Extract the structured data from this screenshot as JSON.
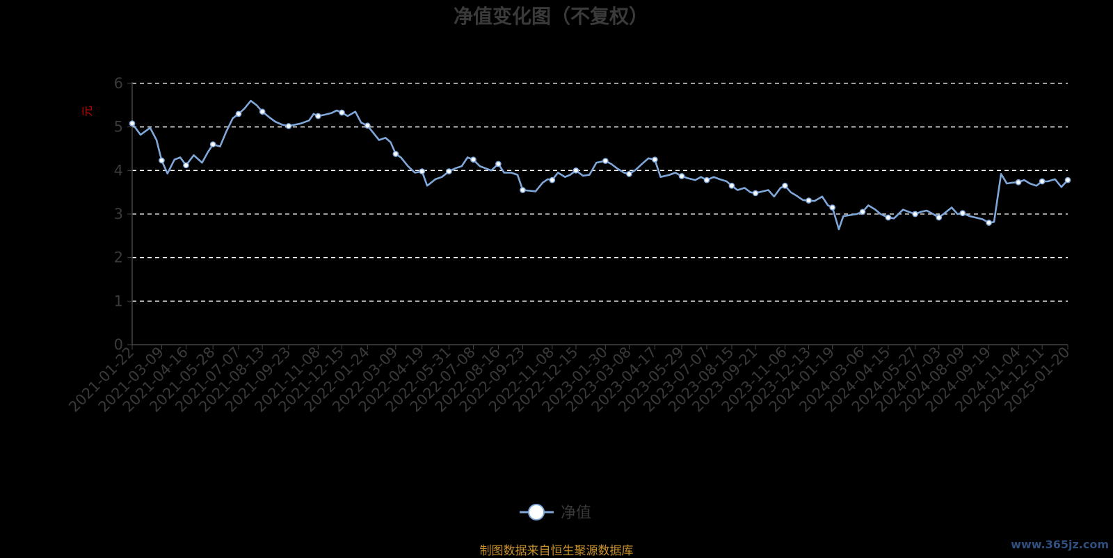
{
  "chart_data": {
    "type": "line",
    "title": "净值变化图（不复权）",
    "ylabel": "元",
    "ylim": [
      0,
      6
    ],
    "yticks": [
      0,
      1,
      2,
      3,
      4,
      5,
      6
    ],
    "grid": true,
    "legend_position": "bottom",
    "x_tick_labels": [
      "2021-01-22",
      "2021-03-09",
      "2021-04-16",
      "2021-05-28",
      "2021-07-07",
      "2021-08-13",
      "2021-09-23",
      "2021-11-08",
      "2021-12-15",
      "2022-01-24",
      "2022-03-09",
      "2022-04-19",
      "2022-05-31",
      "2022-07-08",
      "2022-08-16",
      "2022-09-23",
      "2022-11-08",
      "2022-12-15",
      "2023-01-30",
      "2023-03-08",
      "2023-04-17",
      "2023-05-29",
      "2023-07-07",
      "2023-08-15",
      "2023-09-21",
      "2023-11-06",
      "2023-12-13",
      "2024-01-19",
      "2024-03-06",
      "2024-04-15",
      "2024-05-27",
      "2024-07-03",
      "2024-08-09",
      "2024-09-19",
      "2024-11-04",
      "2024-12-11",
      "2025-01-20"
    ],
    "series": [
      {
        "name": "净值",
        "color": "#7fa7d9",
        "x": [
          "2021-01-22",
          "2021-02-04",
          "2021-02-19",
          "2021-03-01",
          "2021-03-09",
          "2021-03-18",
          "2021-03-29",
          "2021-04-07",
          "2021-04-16",
          "2021-04-28",
          "2021-05-11",
          "2021-05-20",
          "2021-05-28",
          "2021-06-08",
          "2021-06-18",
          "2021-06-28",
          "2021-07-07",
          "2021-07-16",
          "2021-07-26",
          "2021-08-04",
          "2021-08-13",
          "2021-08-24",
          "2021-09-02",
          "2021-09-13",
          "2021-09-23",
          "2021-10-12",
          "2021-10-25",
          "2021-11-01",
          "2021-11-08",
          "2021-11-18",
          "2021-11-29",
          "2021-12-07",
          "2021-12-15",
          "2021-12-24",
          "2022-01-05",
          "2022-01-14",
          "2022-01-24",
          "2022-02-11",
          "2022-02-21",
          "2022-03-01",
          "2022-03-09",
          "2022-03-17",
          "2022-03-28",
          "2022-04-08",
          "2022-04-19",
          "2022-04-27",
          "2022-05-10",
          "2022-05-20",
          "2022-05-31",
          "2022-06-10",
          "2022-06-20",
          "2022-06-29",
          "2022-07-08",
          "2022-07-18",
          "2022-07-27",
          "2022-08-05",
          "2022-08-16",
          "2022-08-25",
          "2022-09-05",
          "2022-09-15",
          "2022-09-23",
          "2022-10-13",
          "2022-10-24",
          "2022-11-01",
          "2022-11-08",
          "2022-11-17",
          "2022-11-28",
          "2022-12-06",
          "2022-12-15",
          "2022-12-26",
          "2023-01-05",
          "2023-01-16",
          "2023-01-30",
          "2023-02-08",
          "2023-02-17",
          "2023-02-28",
          "2023-03-08",
          "2023-03-17",
          "2023-03-28",
          "2023-04-07",
          "2023-04-17",
          "2023-04-26",
          "2023-05-10",
          "2023-05-19",
          "2023-05-29",
          "2023-06-08",
          "2023-06-19",
          "2023-06-28",
          "2023-07-07",
          "2023-07-18",
          "2023-07-27",
          "2023-08-07",
          "2023-08-15",
          "2023-08-24",
          "2023-09-04",
          "2023-09-13",
          "2023-09-21",
          "2023-10-11",
          "2023-10-20",
          "2023-10-30",
          "2023-11-06",
          "2023-11-15",
          "2023-11-24",
          "2023-12-04",
          "2023-12-13",
          "2023-12-22",
          "2024-01-03",
          "2024-01-12",
          "2024-01-19",
          "2024-01-29",
          "2024-02-05",
          "2024-02-26",
          "2024-03-06",
          "2024-03-15",
          "2024-03-26",
          "2024-04-03",
          "2024-04-15",
          "2024-04-24",
          "2024-05-08",
          "2024-05-17",
          "2024-05-27",
          "2024-06-05",
          "2024-06-14",
          "2024-06-24",
          "2024-07-03",
          "2024-07-12",
          "2024-07-23",
          "2024-08-01",
          "2024-08-09",
          "2024-08-20",
          "2024-08-29",
          "2024-09-09",
          "2024-09-19",
          "2024-09-27",
          "2024-10-08",
          "2024-10-17",
          "2024-10-25",
          "2024-11-04",
          "2024-11-13",
          "2024-11-22",
          "2024-12-02",
          "2024-12-11",
          "2024-12-20",
          "2024-12-31",
          "2025-01-10",
          "2025-01-20"
        ],
        "values": [
          5.08,
          4.82,
          4.98,
          4.7,
          4.23,
          3.93,
          4.25,
          4.3,
          4.12,
          4.35,
          4.18,
          4.42,
          4.6,
          4.55,
          4.9,
          5.2,
          5.3,
          5.42,
          5.6,
          5.5,
          5.35,
          5.22,
          5.12,
          5.05,
          5.02,
          5.08,
          5.15,
          5.3,
          5.25,
          5.28,
          5.32,
          5.38,
          5.33,
          5.25,
          5.35,
          5.1,
          5.03,
          4.7,
          4.75,
          4.65,
          4.38,
          4.3,
          4.1,
          3.95,
          3.98,
          3.65,
          3.8,
          3.85,
          3.98,
          4.05,
          4.1,
          4.3,
          4.25,
          4.1,
          4.05,
          4.0,
          4.15,
          3.95,
          3.95,
          3.9,
          3.55,
          3.52,
          3.72,
          3.8,
          3.78,
          3.95,
          3.85,
          3.9,
          4.0,
          3.88,
          3.9,
          4.18,
          4.22,
          4.15,
          4.05,
          3.95,
          3.92,
          4.0,
          4.15,
          4.28,
          4.25,
          3.85,
          3.9,
          3.95,
          3.87,
          3.82,
          3.78,
          3.85,
          3.78,
          3.85,
          3.8,
          3.75,
          3.65,
          3.55,
          3.6,
          3.5,
          3.48,
          3.55,
          3.4,
          3.6,
          3.65,
          3.5,
          3.42,
          3.32,
          3.31,
          3.3,
          3.4,
          3.2,
          3.15,
          2.65,
          2.95,
          3.0,
          3.05,
          3.2,
          3.1,
          3.0,
          2.92,
          2.9,
          3.1,
          3.05,
          3.0,
          3.05,
          3.08,
          3.0,
          2.92,
          3.02,
          3.15,
          3.0,
          3.02,
          2.95,
          2.92,
          2.88,
          2.8,
          2.82,
          3.92,
          3.7,
          3.72,
          3.73,
          3.78,
          3.7,
          3.65,
          3.75,
          3.75,
          3.8,
          3.62,
          3.78
        ]
      }
    ]
  },
  "footer": {
    "source": "制图数据来自恒生聚源数据库",
    "watermark": "www.365jz.com"
  }
}
